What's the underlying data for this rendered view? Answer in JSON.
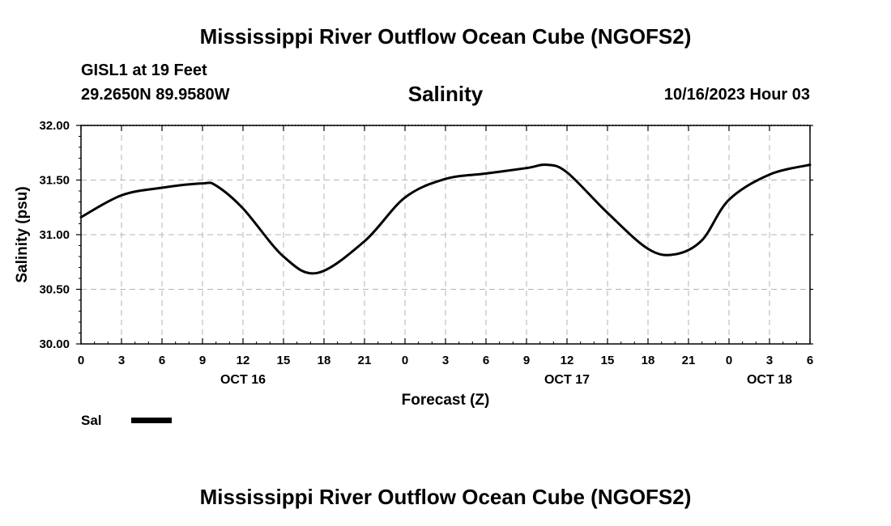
{
  "header": {
    "title": "Mississippi River Outflow Ocean Cube (NGOFS2)",
    "station": "GISL1 at 19 Feet",
    "coordinates": "29.2650N  89.9580W",
    "subtitle": "Salinity",
    "datetime": "10/16/2023 Hour 03"
  },
  "footer": {
    "title": "Mississippi River Outflow Ocean Cube (NGOFS2)"
  },
  "chart_data": {
    "type": "line",
    "title": "Salinity",
    "xlabel": "Forecast (Z)",
    "ylabel": "Salinity (psu)",
    "ylim": [
      30.0,
      32.0
    ],
    "xlim": [
      0,
      54
    ],
    "y_ticks": [
      "30.00",
      "30.50",
      "31.00",
      "31.50",
      "32.00"
    ],
    "x_ticks": [
      "0",
      "3",
      "6",
      "9",
      "12",
      "15",
      "18",
      "21",
      "0",
      "3",
      "6",
      "9",
      "12",
      "15",
      "18",
      "21",
      "0",
      "3",
      "6"
    ],
    "date_labels": [
      {
        "label": "OCT 16",
        "hour": 12
      },
      {
        "label": "OCT 17",
        "hour": 36
      },
      {
        "label": "OCT 18",
        "hour": 51
      }
    ],
    "grid": true,
    "legend": [
      {
        "name": "Sal",
        "color": "#000000"
      }
    ],
    "series": [
      {
        "name": "Sal",
        "color": "#000000",
        "x": [
          0,
          3,
          6,
          9,
          10,
          12,
          15,
          17.5,
          21,
          24,
          27,
          30,
          33,
          34.5,
          36,
          39,
          42,
          44,
          46,
          48,
          51,
          54
        ],
        "y": [
          31.16,
          31.36,
          31.43,
          31.47,
          31.45,
          31.24,
          30.8,
          30.65,
          30.94,
          31.34,
          31.51,
          31.56,
          31.61,
          31.64,
          31.57,
          31.2,
          30.87,
          30.82,
          30.95,
          31.32,
          31.55,
          31.64
        ]
      }
    ]
  }
}
